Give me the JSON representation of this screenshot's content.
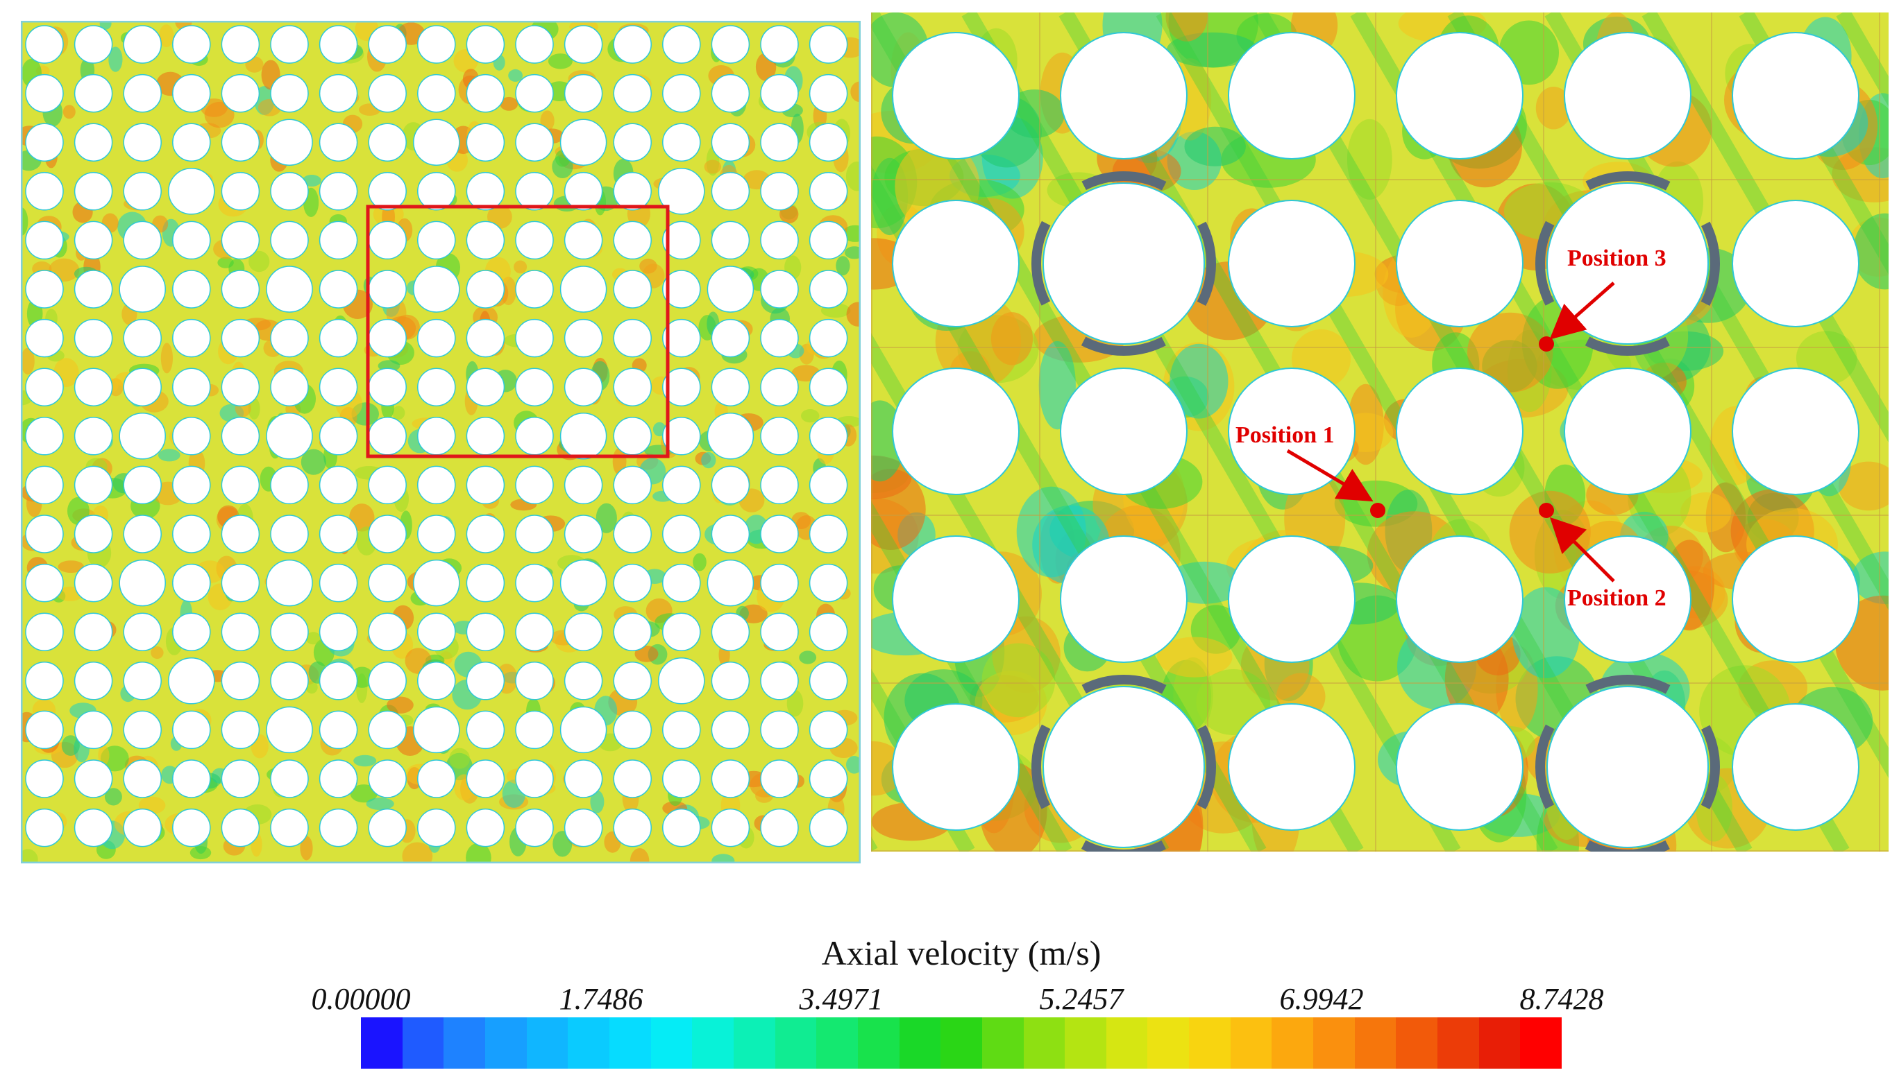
{
  "left_panel": {
    "grid_size": 17,
    "guide_tube_cells": [
      [
        2,
        5
      ],
      [
        2,
        8
      ],
      [
        2,
        11
      ],
      [
        3,
        3
      ],
      [
        3,
        13
      ],
      [
        5,
        2
      ],
      [
        5,
        5
      ],
      [
        5,
        8
      ],
      [
        5,
        11
      ],
      [
        5,
        14
      ],
      [
        8,
        2
      ],
      [
        8,
        5
      ],
      [
        8,
        11
      ],
      [
        8,
        14
      ],
      [
        11,
        2
      ],
      [
        11,
        5
      ],
      [
        11,
        8
      ],
      [
        11,
        11
      ],
      [
        11,
        14
      ],
      [
        13,
        3
      ],
      [
        13,
        13
      ],
      [
        14,
        5
      ],
      [
        14,
        8
      ],
      [
        14,
        11
      ]
    ],
    "zoom_box_color": "#e0161a"
  },
  "right_panel": {
    "columns": 6,
    "rows": 5,
    "large_rod_cells": [
      [
        1,
        1
      ],
      [
        1,
        4
      ],
      [
        4,
        1
      ],
      [
        4,
        4
      ]
    ],
    "annotations": [
      {
        "label": "Position 1"
      },
      {
        "label": "Position 2"
      },
      {
        "label": "Position 3"
      }
    ],
    "marker_color": "#e00000"
  },
  "colorbar": {
    "title": "Axial velocity (m/s)",
    "ticks": [
      "0.00000",
      "1.7486",
      "3.4971",
      "5.2457",
      "6.9942",
      "8.7428"
    ],
    "colors": [
      "#1a14ff",
      "#1f5bff",
      "#1e82ff",
      "#179fff",
      "#10b6ff",
      "#0acbff",
      "#06dcff",
      "#05ecf6",
      "#08f2d8",
      "#0cf0b6",
      "#10ec92",
      "#14e870",
      "#18e24c",
      "#1ad828",
      "#2ad616",
      "#5fdb14",
      "#8ee012",
      "#b4e412",
      "#d6e612",
      "#ece212",
      "#f8d410",
      "#fcc010",
      "#fca80e",
      "#fa900e",
      "#f6760c",
      "#f25a0a",
      "#ec3c08",
      "#e81e06",
      "#ff0000"
    ]
  }
}
